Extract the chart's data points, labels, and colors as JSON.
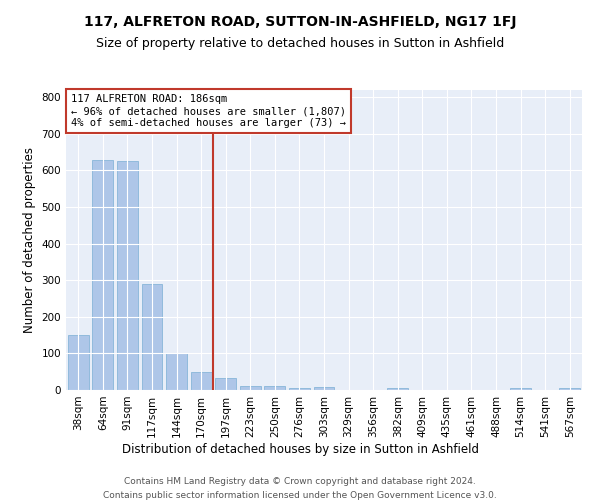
{
  "title": "117, ALFRETON ROAD, SUTTON-IN-ASHFIELD, NG17 1FJ",
  "subtitle": "Size of property relative to detached houses in Sutton in Ashfield",
  "xlabel": "Distribution of detached houses by size in Sutton in Ashfield",
  "ylabel": "Number of detached properties",
  "footer1": "Contains HM Land Registry data © Crown copyright and database right 2024.",
  "footer2": "Contains public sector information licensed under the Open Government Licence v3.0.",
  "bar_labels": [
    "38sqm",
    "64sqm",
    "91sqm",
    "117sqm",
    "144sqm",
    "170sqm",
    "197sqm",
    "223sqm",
    "250sqm",
    "276sqm",
    "303sqm",
    "329sqm",
    "356sqm",
    "382sqm",
    "409sqm",
    "435sqm",
    "461sqm",
    "488sqm",
    "514sqm",
    "541sqm",
    "567sqm"
  ],
  "bar_values": [
    150,
    630,
    625,
    290,
    100,
    48,
    32,
    12,
    11,
    5,
    8,
    0,
    0,
    5,
    0,
    0,
    0,
    0,
    5,
    0,
    5
  ],
  "bar_color": "#aec6e8",
  "bar_edge_color": "#7aafd4",
  "background_color": "#e8eef8",
  "grid_color": "#ffffff",
  "vline_color": "#c0392b",
  "annotation_text": "117 ALFRETON ROAD: 186sqm\n← 96% of detached houses are smaller (1,807)\n4% of semi-detached houses are larger (73) →",
  "annotation_box_color": "#c0392b",
  "ylim": [
    0,
    820
  ],
  "yticks": [
    0,
    100,
    200,
    300,
    400,
    500,
    600,
    700,
    800
  ],
  "title_fontsize": 10,
  "subtitle_fontsize": 9,
  "axis_label_fontsize": 8.5,
  "tick_fontsize": 7.5,
  "annotation_fontsize": 7.5,
  "footer_fontsize": 6.5,
  "vline_x_pos": 5.5
}
